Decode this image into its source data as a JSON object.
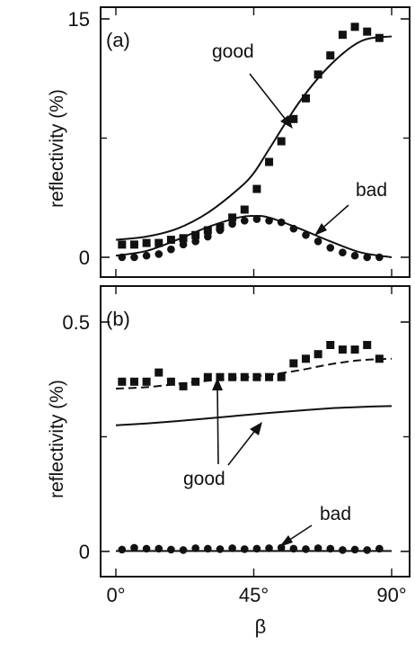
{
  "chart_data": [
    {
      "type": "scatter",
      "panel_label": "(a)",
      "ylabel": "reflectivity  (%)",
      "xlim": [
        0,
        90
      ],
      "ylim": [
        0,
        15
      ],
      "y_ticks": [
        0,
        15
      ],
      "y_minor_ticks": [
        7.5
      ],
      "y_tick_labels": [
        "0",
        "15"
      ],
      "annotations": [
        "good",
        "bad"
      ],
      "series": [
        {
          "marker": "square",
          "x": [
            2,
            6,
            10,
            14,
            18,
            22,
            26,
            30,
            34,
            38,
            42,
            46,
            50,
            54,
            58,
            62,
            66,
            70,
            74,
            78,
            82,
            86
          ],
          "y": [
            0.8,
            0.8,
            0.9,
            0.9,
            1.1,
            1.2,
            1.4,
            1.7,
            1.9,
            2.5,
            3.0,
            4.3,
            6.0,
            7.3,
            8.7,
            10.0,
            11.5,
            12.7,
            14.0,
            14.5,
            14.2,
            13.8
          ]
        },
        {
          "marker": "circle",
          "x": [
            2,
            6,
            10,
            14,
            18,
            22,
            26,
            30,
            34,
            38,
            42,
            46,
            50,
            54,
            58,
            62,
            66,
            70,
            74,
            78,
            82,
            86
          ],
          "y": [
            0.0,
            0.0,
            0.1,
            0.2,
            0.5,
            0.8,
            1.0,
            1.3,
            1.7,
            2.1,
            2.3,
            2.4,
            2.3,
            2.2,
            1.8,
            1.4,
            1.0,
            0.6,
            0.3,
            0.1,
            0.0,
            0.0
          ]
        },
        {
          "line": "solid",
          "x": [
            0,
            10,
            20,
            30,
            40,
            45,
            50,
            60,
            70,
            80,
            90
          ],
          "y": [
            1.1,
            1.3,
            1.8,
            2.8,
            4.3,
            5.3,
            6.8,
            9.8,
            12.1,
            13.6,
            13.9
          ]
        },
        {
          "line": "solid",
          "x": [
            0,
            10,
            20,
            30,
            40,
            45,
            50,
            60,
            70,
            80,
            90
          ],
          "y": [
            0.1,
            0.4,
            1.1,
            1.9,
            2.5,
            2.6,
            2.5,
            1.8,
            1.0,
            0.3,
            0.0
          ]
        }
      ]
    },
    {
      "type": "scatter",
      "panel_label": "(b)",
      "ylabel": "reflectivity  (%)",
      "xlabel": "β",
      "xlim": [
        0,
        90
      ],
      "ylim": [
        0,
        0.5
      ],
      "y_ticks": [
        0,
        0.5
      ],
      "y_minor_ticks": [
        0.25
      ],
      "y_tick_labels": [
        "0",
        "0.5"
      ],
      "x_ticks": [
        0,
        45,
        90
      ],
      "x_tick_labels": [
        "0°",
        "45°",
        "90°"
      ],
      "annotations": [
        "good",
        "bad"
      ],
      "series": [
        {
          "marker": "square",
          "x": [
            2,
            6,
            10,
            14,
            18,
            22,
            26,
            30,
            34,
            38,
            42,
            46,
            50,
            54,
            58,
            62,
            66,
            70,
            74,
            78,
            82,
            86
          ],
          "y": [
            0.37,
            0.37,
            0.37,
            0.39,
            0.37,
            0.36,
            0.37,
            0.38,
            0.38,
            0.38,
            0.38,
            0.38,
            0.38,
            0.38,
            0.41,
            0.42,
            0.43,
            0.45,
            0.44,
            0.44,
            0.45,
            0.42
          ]
        },
        {
          "line": "dashed",
          "x": [
            0,
            10,
            20,
            30,
            40,
            50,
            60,
            70,
            80,
            90
          ],
          "y": [
            0.355,
            0.358,
            0.365,
            0.372,
            0.378,
            0.385,
            0.395,
            0.408,
            0.417,
            0.42
          ]
        },
        {
          "line": "solid",
          "x": [
            0,
            10,
            20,
            30,
            40,
            50,
            60,
            70,
            80,
            90
          ],
          "y": [
            0.275,
            0.279,
            0.284,
            0.29,
            0.296,
            0.302,
            0.307,
            0.312,
            0.315,
            0.317
          ]
        },
        {
          "marker": "circle",
          "x": [
            2,
            6,
            10,
            14,
            18,
            22,
            26,
            30,
            34,
            38,
            42,
            46,
            50,
            54,
            58,
            62,
            66,
            70,
            74,
            78,
            82,
            86
          ],
          "y": [
            0.004,
            0.008,
            0.006,
            0.006,
            0.004,
            0.003,
            0.007,
            0.006,
            0.005,
            0.007,
            0.005,
            0.006,
            0.007,
            0.008,
            0.006,
            0.005,
            0.007,
            0.006,
            0.003,
            0.004,
            0.003,
            0.006
          ]
        },
        {
          "line": "solid",
          "x": [
            0,
            90
          ],
          "y": [
            0.001,
            0.001
          ]
        }
      ]
    }
  ]
}
